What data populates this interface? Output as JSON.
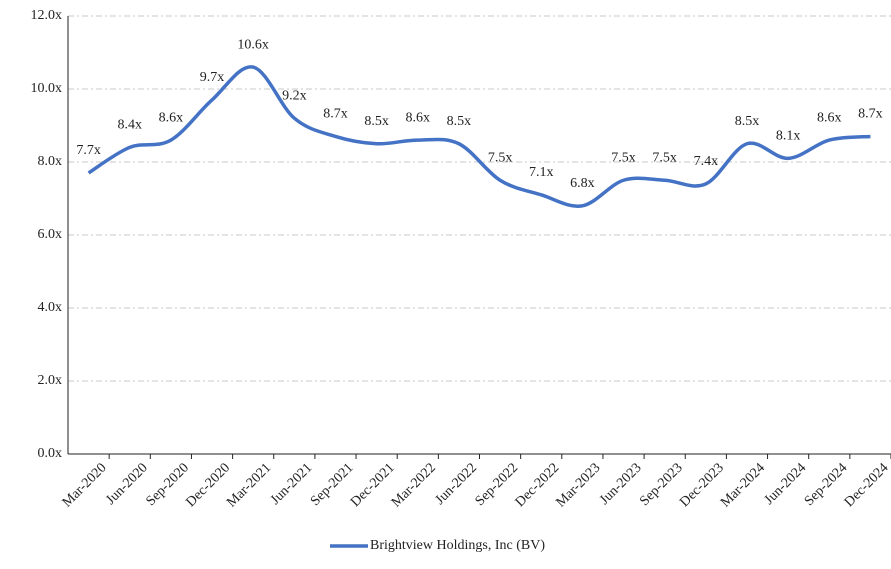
{
  "chart_data": {
    "type": "line",
    "categories": [
      "Mar-2020",
      "Jun-2020",
      "Sep-2020",
      "Dec-2020",
      "Mar-2021",
      "Jun-2021",
      "Sep-2021",
      "Dec-2021",
      "Mar-2022",
      "Jun-2022",
      "Sep-2022",
      "Dec-2022",
      "Mar-2023",
      "Jun-2023",
      "Sep-2023",
      "Dec-2023",
      "Mar-2024",
      "Jun-2024",
      "Sep-2024",
      "Dec-2024"
    ],
    "series": [
      {
        "name": "Brightview Holdings, Inc (BV)",
        "color": "#4472c4",
        "values": [
          7.7,
          8.4,
          8.6,
          9.7,
          10.6,
          9.2,
          8.7,
          8.5,
          8.6,
          8.5,
          7.5,
          7.1,
          6.8,
          7.5,
          7.5,
          7.4,
          8.5,
          8.1,
          8.6,
          8.7
        ],
        "value_labels": [
          "7.7x",
          "8.4x",
          "8.6x",
          "9.7x",
          "10.6x",
          "9.2x",
          "8.7x",
          "8.5x",
          "8.6x",
          "8.5x",
          "7.5x",
          "7.1x",
          "6.8x",
          "7.5x",
          "7.5x",
          "7.4x",
          "8.5x",
          "8.1x",
          "8.6x",
          "8.7x"
        ]
      }
    ],
    "ylim": [
      0,
      12
    ],
    "yticks": [
      {
        "value": 0,
        "label": "0.0x"
      },
      {
        "value": 2,
        "label": "2.0x"
      },
      {
        "value": 4,
        "label": "4.0x"
      },
      {
        "value": 6,
        "label": "6.0x"
      },
      {
        "value": 8,
        "label": "8.0x"
      },
      {
        "value": 10,
        "label": "10.0x"
      },
      {
        "value": 12,
        "label": "12.0x"
      }
    ],
    "grid": true,
    "legend": "bottom"
  }
}
